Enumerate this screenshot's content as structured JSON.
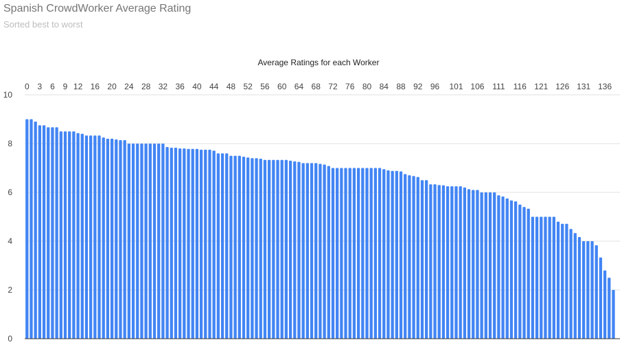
{
  "header": {
    "title": "Spanish CrowdWorker Average Rating",
    "subtitle": "Sorted best to worst"
  },
  "colors": {
    "bar": "#4285f4",
    "grid": "#e0e0e0",
    "baseline": "#333333"
  },
  "chart_data": {
    "type": "bar",
    "title": "Average Ratings for each Worker",
    "xlabel": "",
    "ylabel": "",
    "ylim": [
      0,
      10
    ],
    "yticks": [
      0,
      2,
      4,
      6,
      8,
      10
    ],
    "x_axis_position": "top",
    "grid": true,
    "legend": "none",
    "xtick_labels": [
      "0",
      "3",
      "6",
      "9",
      "12",
      "16",
      "20",
      "24",
      "28",
      "32",
      "36",
      "40",
      "44",
      "48",
      "52",
      "56",
      "60",
      "64",
      "68",
      "72",
      "76",
      "80",
      "84",
      "88",
      "92",
      "96",
      "101",
      "106",
      "111",
      "116",
      "121",
      "126",
      "131",
      "136"
    ],
    "xtick_indices": [
      0,
      3,
      6,
      9,
      12,
      16,
      20,
      24,
      28,
      32,
      36,
      40,
      44,
      48,
      52,
      56,
      60,
      64,
      68,
      72,
      76,
      80,
      84,
      88,
      92,
      96,
      101,
      106,
      111,
      116,
      121,
      126,
      131,
      136
    ],
    "categories": [
      "0",
      "1",
      "2",
      "3",
      "4",
      "5",
      "6",
      "7",
      "8",
      "9",
      "10",
      "11",
      "12",
      "13",
      "14",
      "15",
      "16",
      "17",
      "18",
      "19",
      "20",
      "21",
      "22",
      "23",
      "24",
      "25",
      "26",
      "27",
      "28",
      "29",
      "30",
      "31",
      "32",
      "33",
      "34",
      "35",
      "36",
      "37",
      "38",
      "39",
      "40",
      "41",
      "42",
      "43",
      "44",
      "45",
      "46",
      "47",
      "48",
      "49",
      "50",
      "51",
      "52",
      "53",
      "54",
      "55",
      "56",
      "57",
      "58",
      "59",
      "60",
      "61",
      "62",
      "63",
      "64",
      "65",
      "66",
      "67",
      "68",
      "69",
      "70",
      "71",
      "72",
      "73",
      "74",
      "75",
      "76",
      "77",
      "78",
      "79",
      "80",
      "81",
      "82",
      "83",
      "84",
      "85",
      "86",
      "87",
      "88",
      "89",
      "90",
      "91",
      "92",
      "93",
      "94",
      "95",
      "96",
      "97",
      "98",
      "99",
      "100",
      "101",
      "102",
      "103",
      "104",
      "105",
      "106",
      "107",
      "108",
      "109",
      "110",
      "111",
      "112",
      "113",
      "114",
      "115",
      "116",
      "117",
      "118",
      "119",
      "120",
      "121",
      "122",
      "123",
      "124",
      "125",
      "126",
      "127",
      "128",
      "129",
      "130",
      "131",
      "132",
      "133",
      "134",
      "135",
      "136",
      "137",
      "138"
    ],
    "values": [
      9.0,
      9.0,
      8.9,
      8.75,
      8.75,
      8.67,
      8.67,
      8.67,
      8.5,
      8.5,
      8.5,
      8.5,
      8.43,
      8.4,
      8.33,
      8.33,
      8.33,
      8.33,
      8.25,
      8.2,
      8.2,
      8.17,
      8.14,
      8.14,
      8.0,
      8.0,
      8.0,
      8.0,
      8.0,
      8.0,
      8.0,
      8.0,
      8.0,
      7.86,
      7.83,
      7.83,
      7.8,
      7.8,
      7.78,
      7.78,
      7.78,
      7.75,
      7.75,
      7.75,
      7.71,
      7.6,
      7.6,
      7.6,
      7.5,
      7.5,
      7.5,
      7.46,
      7.43,
      7.4,
      7.4,
      7.38,
      7.33,
      7.33,
      7.33,
      7.33,
      7.33,
      7.33,
      7.3,
      7.27,
      7.25,
      7.2,
      7.2,
      7.2,
      7.2,
      7.17,
      7.14,
      7.08,
      7.0,
      7.0,
      7.0,
      7.0,
      7.0,
      7.0,
      7.0,
      7.0,
      7.0,
      7.0,
      7.0,
      7.0,
      6.95,
      6.9,
      6.88,
      6.88,
      6.86,
      6.75,
      6.7,
      6.67,
      6.63,
      6.5,
      6.5,
      6.33,
      6.33,
      6.3,
      6.29,
      6.25,
      6.25,
      6.25,
      6.25,
      6.2,
      6.13,
      6.1,
      6.1,
      6.0,
      6.0,
      6.0,
      6.0,
      5.88,
      5.83,
      5.75,
      5.67,
      5.63,
      5.5,
      5.4,
      5.33,
      5.0,
      5.0,
      5.0,
      5.0,
      5.0,
      5.0,
      4.8,
      4.71,
      4.71,
      4.5,
      4.33,
      4.17,
      4.0,
      4.0,
      4.0,
      3.83,
      3.33,
      2.8,
      2.5,
      2.0
    ]
  }
}
